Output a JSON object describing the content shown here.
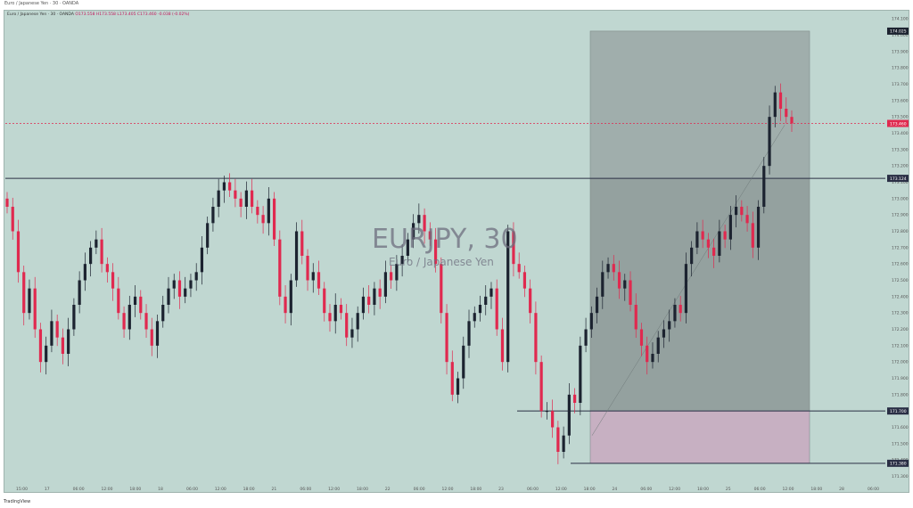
{
  "header": {
    "title": "EURJPY, 30",
    "subtitle": "Euro / Japanese Yen"
  },
  "legend": {
    "text": "Euro / Japanese Yen · 30 · OANDA",
    "ohlc": "O173.558 H173.558 L173.405 C173.460 -0.038 (-0.02%)"
  },
  "footer": {
    "brand": "TradingView"
  },
  "chart_data": {
    "type": "candlestick",
    "title": "EURJPY, 30",
    "subtitle": "Euro / Japanese Yen",
    "y_ticks": [
      "174.100",
      "174.000",
      "173.900",
      "173.800",
      "173.700",
      "173.600",
      "173.500",
      "173.400",
      "173.300",
      "173.200",
      "173.100",
      "173.000",
      "172.900",
      "172.800",
      "172.700",
      "172.600",
      "172.500",
      "172.400",
      "172.300",
      "172.200",
      "172.100",
      "172.000",
      "171.900",
      "171.800",
      "171.700",
      "171.600",
      "171.500",
      "171.400",
      "171.300"
    ],
    "x_ticks": [
      "15:00",
      "17",
      "06:00",
      "12:00",
      "18:00",
      "18",
      "06:00",
      "12:00",
      "18:00",
      "21",
      "06:00",
      "12:00",
      "18:00",
      "22",
      "06:00",
      "12:00",
      "18:00",
      "23",
      "06:00",
      "12:00",
      "18:00",
      "24",
      "06:00",
      "12:00",
      "18:00",
      "25",
      "06:00",
      "12:00",
      "18:00",
      "28",
      "06:00"
    ],
    "ylim": [
      171.27,
      174.15
    ],
    "price_labels": {
      "top": "174.025",
      "current": "173.460",
      "resistance": "173.124",
      "support": "171.700",
      "low": "171.380"
    },
    "levels": {
      "current_price": 173.46,
      "horizontal_line": 173.124,
      "support_line": 171.7,
      "low_line": 171.38
    },
    "zones": [
      {
        "name": "upper",
        "from": 173.124,
        "to": 174.025,
        "color": "#9aa7a6"
      },
      {
        "name": "middle",
        "from": 171.7,
        "to": 173.124,
        "color": "#8c9897"
      },
      {
        "name": "lower",
        "from": 171.38,
        "to": 171.7,
        "color": "#c8a9c0"
      }
    ],
    "series": [
      {
        "values": [
          172.95,
          172.8,
          172.55,
          172.3,
          172.45,
          172.2,
          172.0,
          172.1,
          172.25,
          172.15,
          172.05,
          172.2,
          172.35,
          172.5,
          172.6,
          172.7,
          172.75,
          172.6,
          172.55,
          172.45,
          172.3,
          172.2,
          172.35,
          172.4,
          172.3,
          172.2,
          172.1,
          172.25,
          172.35,
          172.45,
          172.5,
          172.4,
          172.45,
          172.5,
          172.55,
          172.7,
          172.85,
          172.95,
          173.05,
          173.1,
          173.05,
          173.0,
          172.95,
          173.05,
          172.95,
          172.9,
          172.85,
          173.0,
          172.75,
          172.4,
          172.3,
          172.5,
          172.8,
          172.65,
          172.5,
          172.55,
          172.45,
          172.3,
          172.25,
          172.35,
          172.3,
          172.15,
          172.2,
          172.3,
          172.4,
          172.35,
          172.45,
          172.4,
          172.55,
          172.5,
          172.6,
          172.65,
          172.75,
          172.85,
          172.9,
          172.8,
          172.75,
          172.6,
          172.3,
          172.0,
          171.8,
          171.9,
          172.1,
          172.25,
          172.3,
          172.35,
          172.4,
          172.45,
          172.2,
          172.0,
          172.8,
          172.6,
          172.55,
          172.45,
          172.3,
          172.0,
          171.7,
          171.7,
          171.6,
          171.45,
          171.55,
          171.8,
          171.75,
          172.1,
          172.2,
          172.3,
          172.4,
          172.55,
          172.6,
          172.55,
          172.45,
          172.5,
          172.35,
          172.2,
          172.1,
          172.0,
          172.05,
          172.15,
          172.2,
          172.25,
          172.35,
          172.3,
          172.6,
          172.7,
          172.8,
          172.75,
          172.7,
          172.65,
          172.8,
          172.75,
          172.9,
          172.95,
          172.9,
          172.85,
          172.7,
          172.95,
          173.2,
          173.5,
          173.65,
          173.55,
          173.5,
          173.46
        ],
        "ohlc_style": {
          "up": "#1c2330",
          "down": "#e0294f"
        }
      }
    ]
  }
}
